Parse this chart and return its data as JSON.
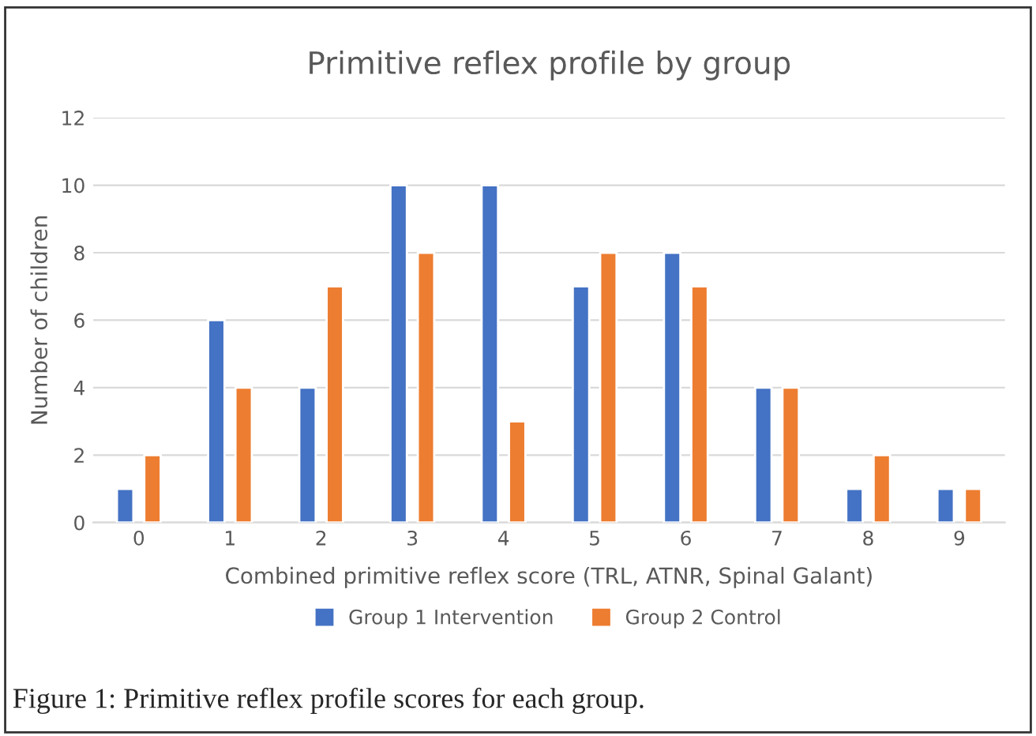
{
  "chart_data": {
    "type": "bar",
    "title": "Primitive reflex profile by group",
    "xlabel": "Combined primitive reflex score (TRL, ATNR, Spinal Galant)",
    "ylabel": "Number of children",
    "categories": [
      "0",
      "1",
      "2",
      "3",
      "4",
      "5",
      "6",
      "7",
      "8",
      "9"
    ],
    "series": [
      {
        "name": "Group 1 Intervention",
        "color": "#4472c4",
        "values": [
          1,
          6,
          4,
          10,
          10,
          7,
          8,
          4,
          1,
          1
        ]
      },
      {
        "name": "Group 2 Control",
        "color": "#ed7d31",
        "values": [
          2,
          4,
          7,
          8,
          3,
          8,
          7,
          4,
          2,
          1
        ]
      }
    ],
    "ylim": [
      0,
      12
    ],
    "yticks": [
      0,
      2,
      4,
      6,
      8,
      10,
      12
    ],
    "grid": "y",
    "legend": "bottom",
    "annotations": [
      "Figure 1: Primitive reflex profile scores for each group."
    ]
  }
}
